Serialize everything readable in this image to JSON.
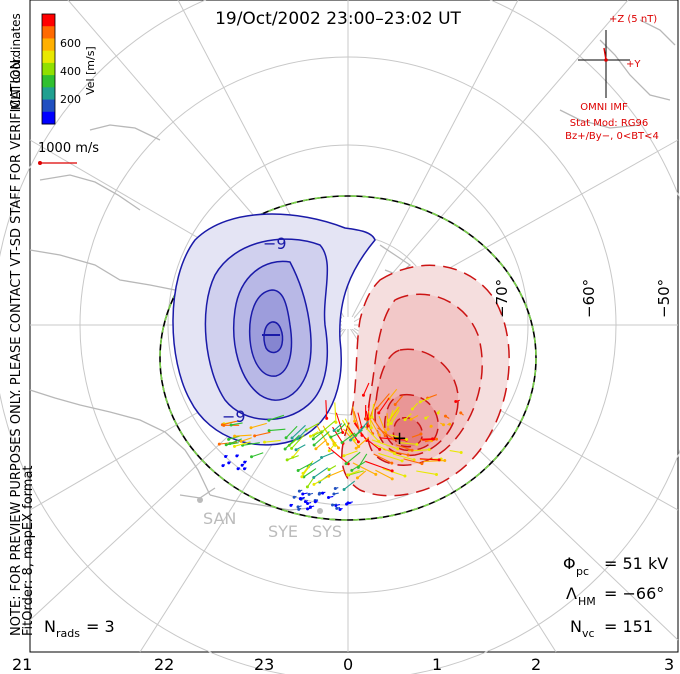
{
  "header": {
    "title": "19/Oct/2002 23:00–23:02 UT"
  },
  "side_note": {
    "line1": "NOTE: FOR PREVIEW PURPOSES ONLY. PLEASE CONTACT VT-SD STAFF FOR VERIFICATION.",
    "line2": "FitOrder: 8,  mapEX format",
    "coords": "MLT coordinates"
  },
  "colorbar": {
    "label": "Vel [m/s]",
    "ticks": [
      "600",
      "400",
      "200"
    ],
    "colors": [
      "#ff0000",
      "#ff6a00",
      "#ffb000",
      "#e8e800",
      "#90e000",
      "#30c030",
      "#20a090",
      "#2050c0",
      "#0000ff"
    ]
  },
  "scale_vector": {
    "label": "1000 m/s",
    "color": "#dd0000"
  },
  "imf": {
    "z_label": "+Z (5 nT)",
    "y_label": "+Y",
    "source": "OMNI IMF",
    "stat_mod": "Stat Mod: RG96",
    "condition": "Bz+/By−, 0<BT<4",
    "color": "#dd0000"
  },
  "lat_labels": [
    "−70°",
    "−60°",
    "−50°"
  ],
  "mlt_labels": [
    "21",
    "22",
    "23",
    "0",
    "1",
    "2",
    "3"
  ],
  "contour_labels": {
    "neg": "−9",
    "neg2": "−9",
    "pos": "+"
  },
  "stations": [
    "SAN",
    "SYE",
    "SYS"
  ],
  "stats": {
    "phi_label": "Φ",
    "phi_sub": "pc",
    "phi_value": "= 51 kV",
    "lambda_label": "Λ",
    "lambda_sub": "HM",
    "lambda_value": "= −66°",
    "nvc_label": "N",
    "nvc_sub": "vc",
    "nvc_value": "= 151",
    "nrads_label": "N",
    "nrads_sub": "rads",
    "nrads_value": "= 3"
  },
  "colors": {
    "negative_cell": "#1a1aa8",
    "positive_cell": "#cc1414",
    "boundary_green": "#7ad14a",
    "grid": "#c8c8c8",
    "land": "#b8b8b8"
  }
}
